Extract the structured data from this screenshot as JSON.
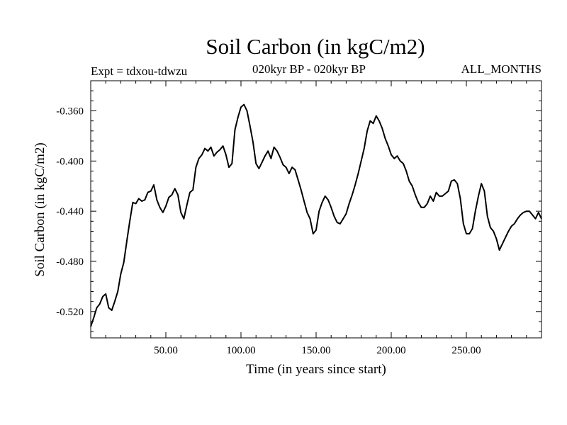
{
  "header": {
    "title": "Soil Carbon (in kgC/m2)",
    "experiment": "Expt = tdxou-tdwzu",
    "period": "020kyr BP - 020kyr BP",
    "months": "ALL_MONTHS"
  },
  "chart_data": {
    "type": "line",
    "xlabel": "Time (in years since start)",
    "ylabel": "Soil Carbon (in kgC/m2)",
    "xlim": [
      0,
      300
    ],
    "ylim": [
      -0.541,
      -0.336
    ],
    "xticks": [
      50,
      100,
      150,
      200,
      250
    ],
    "xtick_labels": [
      "50.00",
      "100.00",
      "150.00",
      "200.00",
      "250.00"
    ],
    "yticks": [
      -0.52,
      -0.48,
      -0.44,
      -0.4,
      -0.36
    ],
    "ytick_labels": [
      "-0.520",
      "-0.480",
      "-0.440",
      "-0.400",
      "-0.360"
    ],
    "grid": false,
    "series": [
      {
        "x": [
          0,
          2,
          4,
          6,
          8,
          10,
          12,
          14,
          16,
          18,
          20,
          22,
          24,
          26,
          28,
          30,
          32,
          34,
          36,
          38,
          40,
          42,
          44,
          46,
          48,
          50,
          52,
          54,
          56,
          58,
          60,
          62,
          64,
          66,
          68,
          70,
          72,
          74,
          76,
          78,
          80,
          82,
          84,
          86,
          88,
          90,
          92,
          94,
          96,
          98,
          100,
          102,
          104,
          106,
          108,
          110,
          112,
          114,
          116,
          118,
          120,
          122,
          124,
          126,
          128,
          130,
          132,
          134,
          136,
          138,
          140,
          142,
          144,
          146,
          148,
          150,
          152,
          154,
          156,
          158,
          160,
          162,
          164,
          166,
          168,
          170,
          172,
          174,
          176,
          178,
          180,
          182,
          184,
          186,
          188,
          190,
          192,
          194,
          196,
          198,
          200,
          202,
          204,
          206,
          208,
          210,
          212,
          214,
          216,
          218,
          220,
          222,
          224,
          226,
          228,
          230,
          232,
          234,
          236,
          238,
          240,
          242,
          244,
          246,
          248,
          250,
          252,
          254,
          256,
          258,
          260,
          262,
          264,
          266,
          268,
          270,
          272,
          274,
          276,
          278,
          280,
          282,
          284,
          286,
          288,
          290,
          292,
          294,
          296,
          298,
          300
        ],
        "values": [
          -0.532,
          -0.525,
          -0.517,
          -0.514,
          -0.508,
          -0.506,
          -0.517,
          -0.519,
          -0.512,
          -0.504,
          -0.49,
          -0.481,
          -0.464,
          -0.448,
          -0.433,
          -0.434,
          -0.43,
          -0.432,
          -0.431,
          -0.425,
          -0.424,
          -0.419,
          -0.431,
          -0.437,
          -0.441,
          -0.436,
          -0.429,
          -0.427,
          -0.422,
          -0.427,
          -0.441,
          -0.446,
          -0.435,
          -0.425,
          -0.423,
          -0.405,
          -0.398,
          -0.395,
          -0.39,
          -0.392,
          -0.389,
          -0.396,
          -0.393,
          -0.391,
          -0.388,
          -0.395,
          -0.405,
          -0.402,
          -0.375,
          -0.365,
          -0.357,
          -0.355,
          -0.36,
          -0.372,
          -0.385,
          -0.402,
          -0.406,
          -0.401,
          -0.396,
          -0.392,
          -0.398,
          -0.389,
          -0.392,
          -0.397,
          -0.403,
          -0.405,
          -0.41,
          -0.405,
          -0.407,
          -0.415,
          -0.423,
          -0.432,
          -0.441,
          -0.446,
          -0.458,
          -0.455,
          -0.44,
          -0.433,
          -0.428,
          -0.431,
          -0.437,
          -0.444,
          -0.449,
          -0.45,
          -0.446,
          -0.442,
          -0.434,
          -0.427,
          -0.419,
          -0.41,
          -0.4,
          -0.39,
          -0.376,
          -0.368,
          -0.37,
          -0.364,
          -0.368,
          -0.374,
          -0.382,
          -0.388,
          -0.395,
          -0.398,
          -0.396,
          -0.4,
          -0.402,
          -0.408,
          -0.416,
          -0.42,
          -0.427,
          -0.433,
          -0.437,
          -0.437,
          -0.434,
          -0.428,
          -0.432,
          -0.425,
          -0.428,
          -0.428,
          -0.426,
          -0.424,
          -0.416,
          -0.415,
          -0.418,
          -0.43,
          -0.45,
          -0.458,
          -0.458,
          -0.454,
          -0.44,
          -0.428,
          -0.418,
          -0.424,
          -0.444,
          -0.453,
          -0.456,
          -0.462,
          -0.471,
          -0.466,
          -0.461,
          -0.456,
          -0.452,
          -0.45,
          -0.446,
          -0.443,
          -0.441,
          -0.44,
          -0.44,
          -0.443,
          -0.446,
          -0.441,
          -0.446
        ]
      }
    ]
  }
}
